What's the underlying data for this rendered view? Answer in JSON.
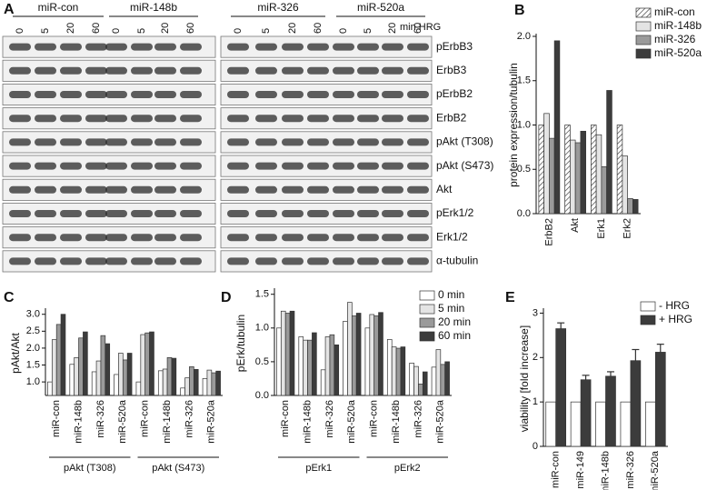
{
  "blot": {
    "panel_label": "A",
    "groups": [
      "miR-con",
      "miR-148b",
      "miR-326",
      "miR-520a"
    ],
    "times": [
      "0",
      "5",
      "20",
      "60"
    ],
    "time_unit": "min HRG",
    "rows": [
      "pErbB3",
      "ErbB3",
      "pErbB2",
      "ErbB2",
      "pAkt (T308)",
      "pAkt (S473)",
      "Akt",
      "pErk1/2",
      "Erk1/2",
      "α-tubulin"
    ]
  },
  "chart_data": [
    {
      "type": "bar",
      "panel_label": "B",
      "y_label": "protein expression/tubulin",
      "categories": [
        "ErbB2",
        "Akt",
        "Erk1",
        "Erk2"
      ],
      "series": [
        {
          "name": "miR-con",
          "color": "#ffffff",
          "hatch": true,
          "values": [
            1.0,
            1.0,
            1.0,
            1.0
          ]
        },
        {
          "name": "miR-148b",
          "color": "#e4e4e4",
          "values": [
            1.13,
            0.83,
            0.89,
            0.65
          ]
        },
        {
          "name": "miR-326",
          "color": "#9a9a9a",
          "values": [
            0.85,
            0.8,
            0.53,
            0.17
          ]
        },
        {
          "name": "miR-520a",
          "color": "#3c3c3c",
          "values": [
            1.95,
            0.93,
            1.39,
            0.16
          ]
        }
      ],
      "ylim": [
        0,
        2.0
      ],
      "yticks": [
        {
          "value": 0,
          "label": "0.0"
        },
        {
          "value": 0.5,
          "label": "0.5"
        },
        {
          "value": 1,
          "label": "1.0"
        },
        {
          "value": 1.5,
          "label": "1.5"
        },
        {
          "value": 2,
          "label": "2.0"
        }
      ],
      "legend": "upper right"
    },
    {
      "type": "bar",
      "panel_label": "C",
      "y_label": "pAkt/Akt",
      "categories": [
        "miR-con",
        "miR-148b",
        "miR-326",
        "miR-520a",
        "miR-con",
        "miR-148b",
        "miR-326",
        "miR-520a"
      ],
      "groups": [
        "pAkt (T308)",
        "pAkt (S473)"
      ],
      "series": [
        {
          "color": "#ffffff",
          "values": [
            1.0,
            1.52,
            1.3,
            1.22,
            1.0,
            1.33,
            0.82,
            1.1
          ]
        },
        {
          "color": "#e4e4e4",
          "values": [
            2.25,
            1.72,
            1.62,
            1.85,
            2.4,
            1.38,
            1.12,
            1.35
          ]
        },
        {
          "color": "#9a9a9a",
          "values": [
            2.7,
            2.3,
            2.37,
            1.65,
            2.45,
            1.72,
            1.45,
            1.27
          ]
        },
        {
          "color": "#3c3c3c",
          "values": [
            3.0,
            2.48,
            2.13,
            1.85,
            2.48,
            1.7,
            1.37,
            1.32
          ]
        }
      ],
      "ylim": [
        0.6,
        3.1
      ],
      "yticks": [
        {
          "value": 1,
          "label": "1.0"
        },
        {
          "value": 1.5,
          "label": "1.5"
        },
        {
          "value": 2,
          "label": "2.0"
        },
        {
          "value": 2.5,
          "label": "2.5"
        },
        {
          "value": 3,
          "label": "3.0"
        }
      ]
    },
    {
      "type": "bar",
      "panel_label": "D",
      "y_label": "pErk/tubulin",
      "categories": [
        "miR-con",
        "miR-148b",
        "miR-326",
        "miR-520a",
        "miR-con",
        "miR-148b",
        "miR-326",
        "miR-520a"
      ],
      "groups": [
        "pErk1",
        "pErk2"
      ],
      "series": [
        {
          "name": "0 min",
          "color": "#ffffff",
          "values": [
            1.0,
            0.87,
            0.38,
            1.1,
            1.0,
            0.83,
            0.48,
            0.42
          ]
        },
        {
          "name": "5 min",
          "color": "#e4e4e4",
          "values": [
            1.25,
            0.82,
            0.87,
            1.38,
            1.2,
            0.72,
            0.43,
            0.68
          ]
        },
        {
          "name": "20 min",
          "color": "#9a9a9a",
          "values": [
            1.22,
            0.82,
            0.9,
            1.18,
            1.18,
            0.7,
            0.17,
            0.46
          ]
        },
        {
          "name": "60 min",
          "color": "#3c3c3c",
          "values": [
            1.25,
            0.93,
            0.75,
            1.22,
            1.23,
            0.72,
            0.35,
            0.5
          ]
        }
      ],
      "ylim": [
        0,
        1.55
      ],
      "yticks": [
        {
          "value": 0,
          "label": "0.0"
        },
        {
          "value": 0.5,
          "label": "0.5"
        },
        {
          "value": 1,
          "label": "1.0"
        },
        {
          "value": 1.5,
          "label": "1.5"
        }
      ],
      "legend": "upper right"
    },
    {
      "type": "bar",
      "panel_label": "E",
      "y_label": "viability [fold increase]",
      "categories": [
        "miR-con",
        "miR-149",
        "miR-148b",
        "miR-326",
        "miR-520a"
      ],
      "series": [
        {
          "name": "- HRG",
          "color": "#ffffff",
          "values": [
            1,
            1,
            1,
            1,
            1
          ]
        },
        {
          "name": "+ HRG",
          "color": "#3c3c3c",
          "values": [
            2.65,
            1.5,
            1.58,
            1.93,
            2.12
          ],
          "errors": [
            0.13,
            0.1,
            0.1,
            0.25,
            0.18
          ]
        }
      ],
      "ylim": [
        0,
        3.05
      ],
      "yticks": [
        0,
        1,
        2,
        3
      ],
      "legend": "upper right"
    }
  ]
}
